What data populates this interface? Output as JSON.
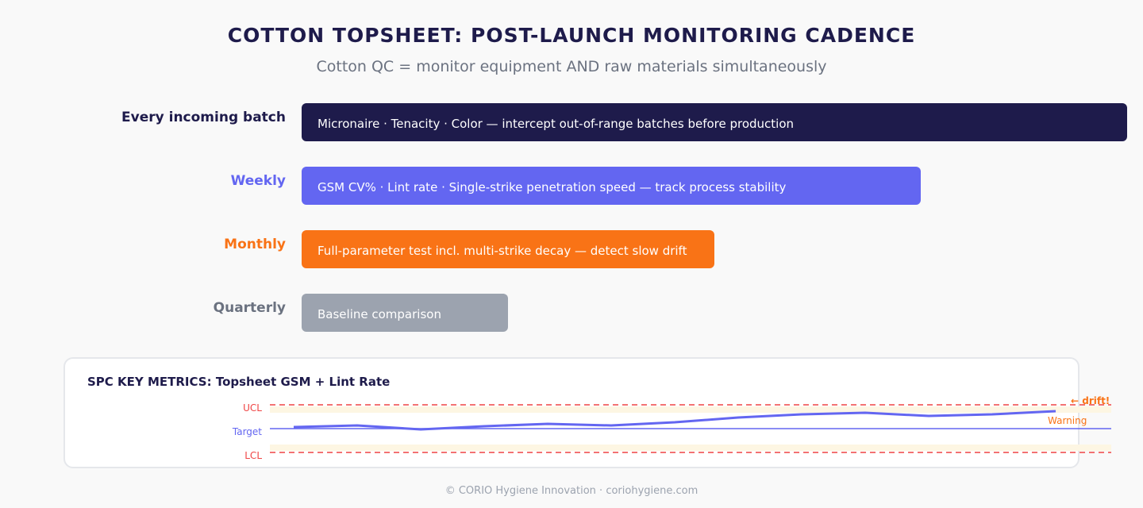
{
  "header": {
    "title": "COTTON TOPSHEET: POST-LAUNCH MONITORING CADENCE",
    "subtitle": "Cotton QC = monitor equipment AND raw materials simultaneously"
  },
  "cadence": [
    {
      "label": "Every incoming batch",
      "text": "Micronaire · Tenacity · Color — intercept out-of-range batches before production",
      "color": "#1e1b4b",
      "label_color": "#1e1b4b"
    },
    {
      "label": "Weekly",
      "text": "GSM CV% · Lint rate · Single-strike penetration speed — track process stability",
      "color": "#6366f1",
      "label_color": "#6366f1"
    },
    {
      "label": "Monthly",
      "text": "Full-parameter test incl. multi-strike decay — detect slow drift",
      "color": "#f97316",
      "label_color": "#f97316"
    },
    {
      "label": "Quarterly",
      "text": "Baseline comparison",
      "color": "#9ca3af",
      "label_color": "#6b7280"
    }
  ],
  "spc": {
    "title": "SPC KEY METRICS: Topsheet GSM + Lint Rate",
    "ucl": "UCL",
    "target": "Target",
    "lcl": "LCL",
    "warning": "Warning",
    "drift": "← drift!",
    "colors": {
      "limit": "#ef4444",
      "target": "#6366f1",
      "warning": "#f97316",
      "band": "#fdf6e3"
    }
  },
  "footer": "© CORIO Hygiene Innovation · coriohygiene.com"
}
